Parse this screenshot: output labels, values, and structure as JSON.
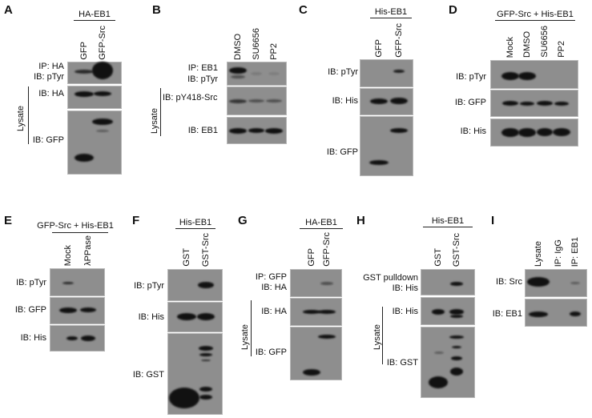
{
  "panels": {
    "A": {
      "letter": "A",
      "header": "HA-EB1",
      "lanes": [
        "GFP",
        "GFP-Src"
      ],
      "labels": [
        "IP: HA",
        "IB: pTyr",
        "IB: HA",
        "IB: GFP"
      ],
      "group": "Lysate"
    },
    "B": {
      "letter": "B",
      "lanes": [
        "DMSO",
        "SU6656",
        "PP2"
      ],
      "labels": [
        "IP: EB1",
        "IB: pTyr",
        "IB: pY418-Src",
        "IB: EB1"
      ],
      "group": "Lysate"
    },
    "C": {
      "letter": "C",
      "header": "His-EB1",
      "lanes": [
        "GFP",
        "GFP-Src"
      ],
      "labels": [
        "IB: pTyr",
        "IB: His",
        "IB: GFP"
      ]
    },
    "D": {
      "letter": "D",
      "header": "GFP-Src + His-EB1",
      "lanes": [
        "Mock",
        "DMSO",
        "SU6656",
        "PP2"
      ],
      "labels": [
        "IB: pTyr",
        "IB: GFP",
        "IB: His"
      ]
    },
    "E": {
      "letter": "E",
      "header": "GFP-Src + His-EB1",
      "lanes": [
        "Mock",
        "λPPase"
      ],
      "labels": [
        "IB: pTyr",
        "IB: GFP",
        "IB: His"
      ]
    },
    "F": {
      "letter": "F",
      "header": "His-EB1",
      "lanes": [
        "GST",
        "GST-Src"
      ],
      "labels": [
        "IB: pTyr",
        "IB: His",
        "IB: GST"
      ]
    },
    "G": {
      "letter": "G",
      "header": "HA-EB1",
      "lanes": [
        "GFP",
        "GFP-Src"
      ],
      "labels": [
        "IP: GFP",
        "IB: HA",
        "IB: HA",
        "IB: GFP"
      ],
      "group": "Lysate"
    },
    "H": {
      "letter": "H",
      "header": "His-EB1",
      "lanes": [
        "GST",
        "GST-Src"
      ],
      "labels": [
        "GST pulldown",
        "IB: His",
        "IB: His",
        "IB: GST"
      ],
      "group": "Lysate"
    },
    "I": {
      "letter": "I",
      "lanes": [
        "Lysate",
        "IP: IgG",
        "IP: EB1"
      ],
      "labels": [
        "IB: Src",
        "IB: EB1"
      ]
    }
  },
  "colors": {
    "blot": "#8e8e8e",
    "band": "#111111"
  }
}
